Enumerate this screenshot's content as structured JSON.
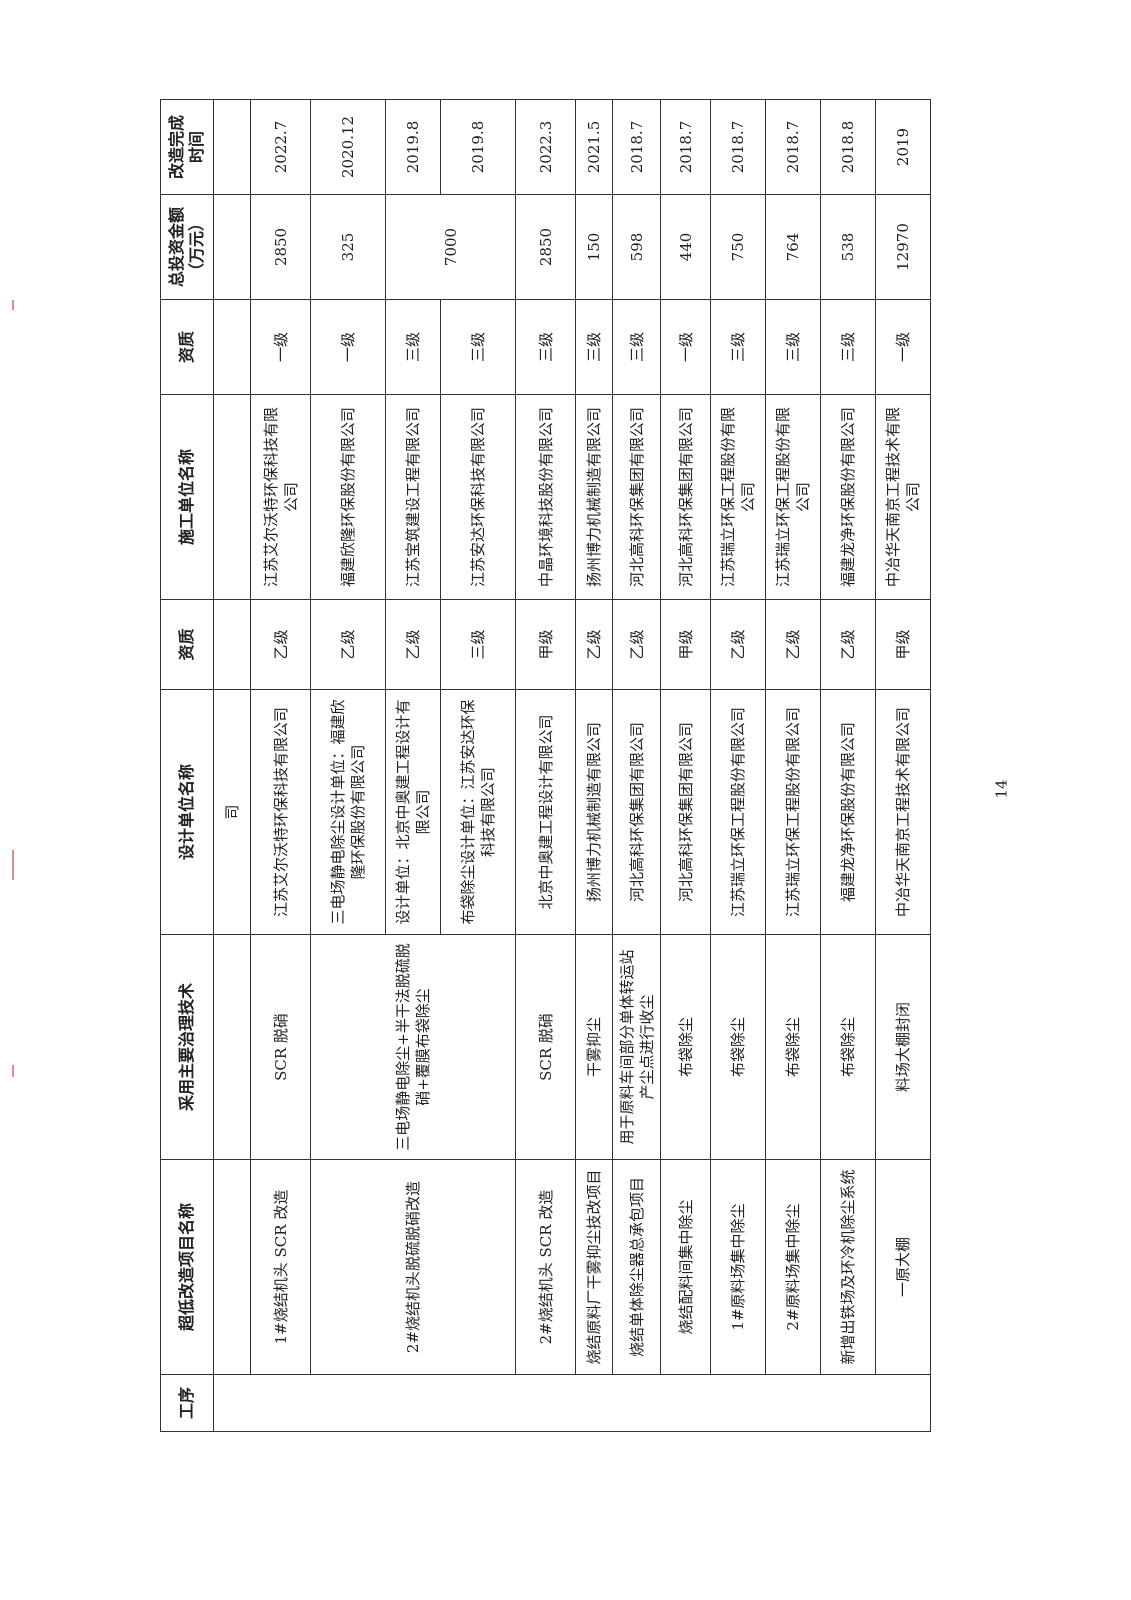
{
  "headers": [
    "工序",
    "超低改造项目名称",
    "采用主要治理技术",
    "设计单位名称",
    "资质",
    "施工单位名称",
    "资质",
    "总投资金额（万元）",
    "改造完成时间"
  ],
  "continuation": {
    "design": "司"
  },
  "rows": [
    {
      "project": "1#烧结机头 SCR 改造",
      "tech": "SCR 脱硝",
      "design": "江苏艾尔沃特环保科技有限公司",
      "design_q": "乙级",
      "builder": "江苏艾尔沃特环保科技有限公司",
      "builder_q": "一级",
      "invest": "2850",
      "date": "2022.7"
    },
    {
      "project": "2#烧结机头脱硫脱硝改造",
      "tech": "三电场静电除尘+半干法脱硫脱硝+覆膜布袋除尘",
      "design": "三电场静电除尘设计单位：福建欣隆环保股份有限公司",
      "design_q": "乙级",
      "builder": "福建欣隆环保股份有限公司",
      "builder_q": "一级",
      "invest": "325",
      "date": "2020.12"
    },
    {
      "design": "设计单位：北京中奥建工程设计有限公司",
      "design_q": "乙级",
      "builder": "江苏宝筑建设工程有限公司",
      "builder_q": "三级",
      "invest": "7000",
      "date": "2019.8"
    },
    {
      "design": "布袋除尘设计单位：江苏安达环保科技有限公司",
      "design_q": "三级",
      "builder": "江苏安达环保科技有限公司",
      "builder_q": "三级",
      "date": "2019.8"
    },
    {
      "project": "2#烧结机头 SCR 改造",
      "tech": "SCR 脱硝",
      "design": "北京中奥建工程设计有限公司",
      "design_q": "甲级",
      "builder": "中晶环境科技股份有限公司",
      "builder_q": "三级",
      "invest": "2850",
      "date": "2022.3"
    },
    {
      "project": "烧结原料厂干雾抑尘技改项目",
      "tech": "干雾抑尘",
      "design": "扬州博力机械制造有限公司",
      "design_q": "乙级",
      "builder": "扬州博力机械制造有限公司",
      "builder_q": "三级",
      "invest": "150",
      "date": "2021.5"
    },
    {
      "project": "烧结单体除尘器总承包项目",
      "tech": "用于原料车间部分单体转运站产尘点进行收尘",
      "design": "河北高科环保集团有限公司",
      "design_q": "乙级",
      "builder": "河北高科环保集团有限公司",
      "builder_q": "三级",
      "invest": "598",
      "date": "2018.7"
    },
    {
      "project": "烧结配料间集中除尘",
      "tech": "布袋除尘",
      "design": "河北高科环保集团有限公司",
      "design_q": "甲级",
      "builder": "河北高科环保集团有限公司",
      "builder_q": "一级",
      "invest": "440",
      "date": "2018.7"
    },
    {
      "project": "1#原料场集中除尘",
      "tech": "布袋除尘",
      "design": "江苏瑞立环保工程股份有限公司",
      "design_q": "乙级",
      "builder": "江苏瑞立环保工程股份有限公司",
      "builder_q": "三级",
      "invest": "750",
      "date": "2018.7"
    },
    {
      "project": "2#原料场集中除尘",
      "tech": "布袋除尘",
      "design": "江苏瑞立环保工程股份有限公司",
      "design_q": "乙级",
      "builder": "江苏瑞立环保工程股份有限公司",
      "builder_q": "三级",
      "invest": "764",
      "date": "2018.7"
    },
    {
      "project": "新增出铁场及环冷机除尘系统",
      "tech": "布袋除尘",
      "design": "福建龙净环保股份有限公司",
      "design_q": "乙级",
      "builder": "福建龙净环保股份有限公司",
      "builder_q": "三级",
      "invest": "538",
      "date": "2018.8"
    },
    {
      "project": "一原大棚",
      "tech": "料场大棚封闭",
      "design": "中冶华天南京工程技术有限公司",
      "design_q": "甲级",
      "builder": "中冶华天南京工程技术有限公司",
      "builder_q": "一级",
      "invest": "12970",
      "date": "2019"
    }
  ],
  "page_number": "14"
}
